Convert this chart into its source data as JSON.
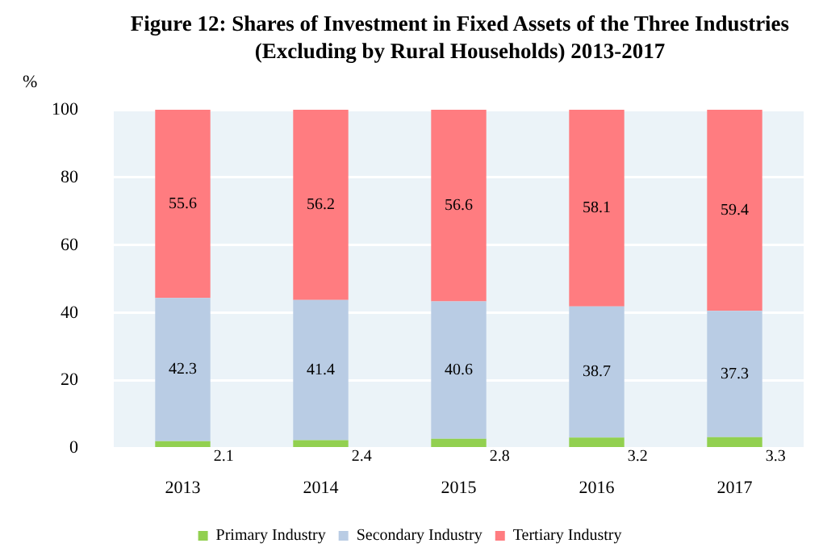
{
  "chart_data": {
    "type": "bar",
    "title": "Figure 12: Shares of Investment in Fixed Assets of the Three Industries\n(Excluding by Rural Households)  2013-2017",
    "ylabel": "%",
    "categories": [
      "2013",
      "2014",
      "2015",
      "2016",
      "2017"
    ],
    "stacked": true,
    "series": [
      {
        "name": "Primary Industry",
        "color": "#92d050",
        "values": [
          2.1,
          2.4,
          2.8,
          3.2,
          3.3
        ]
      },
      {
        "name": "Secondary Industry",
        "color": "#b9cce4",
        "values": [
          42.3,
          41.4,
          40.6,
          38.7,
          37.3
        ]
      },
      {
        "name": "Tertiary Industry",
        "color": "#ff7c80",
        "values": [
          55.6,
          56.2,
          56.6,
          58.1,
          59.4
        ]
      }
    ],
    "ylim": [
      0,
      100
    ],
    "yticks": [
      0,
      20,
      40,
      60,
      80,
      100
    ],
    "grid": "y",
    "legend": "bottom",
    "data_labels": true
  }
}
